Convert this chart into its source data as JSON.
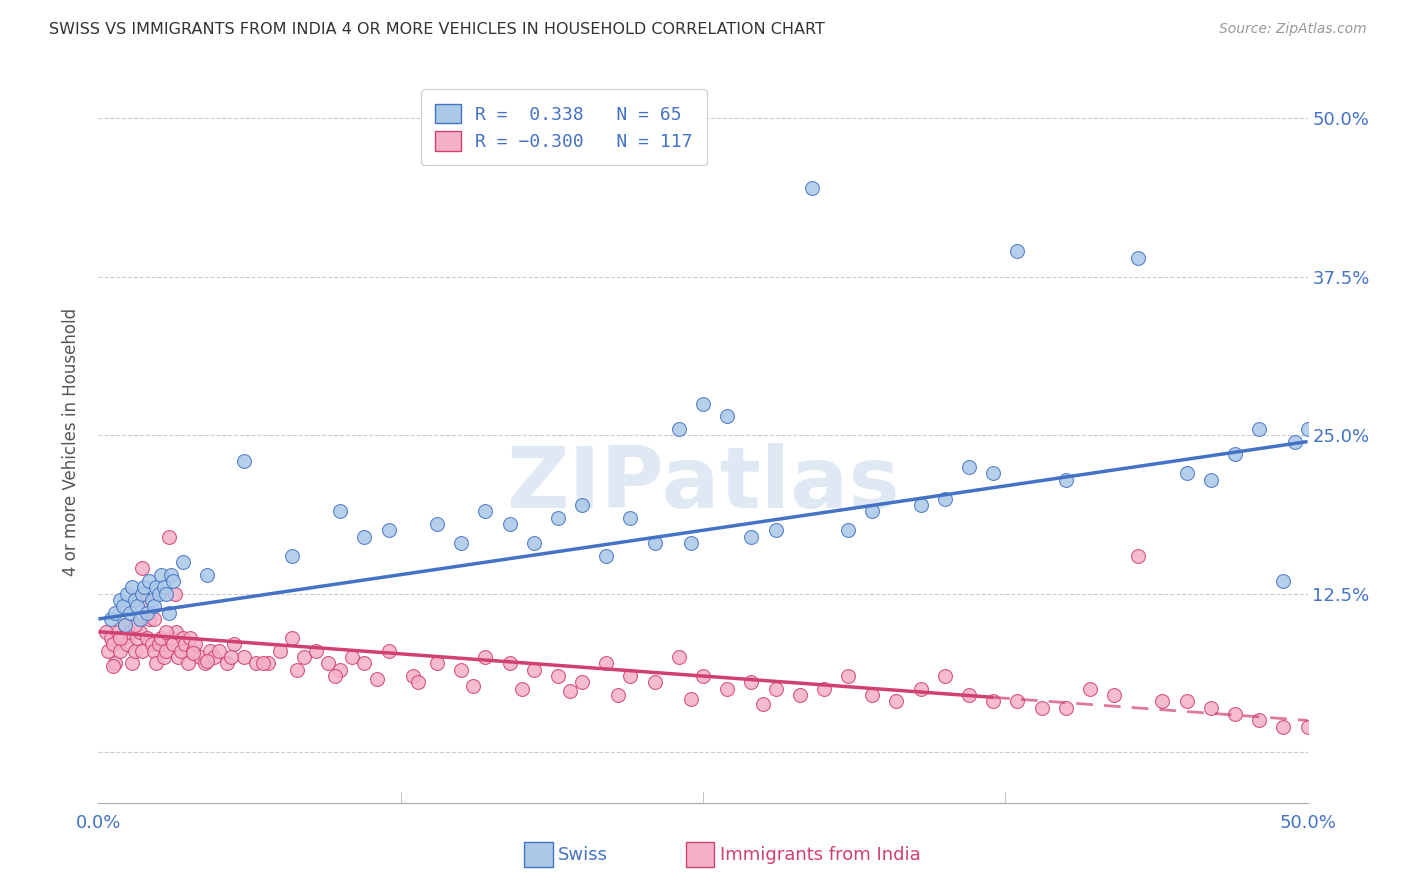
{
  "title": "SWISS VS IMMIGRANTS FROM INDIA 4 OR MORE VEHICLES IN HOUSEHOLD CORRELATION CHART",
  "source": "Source: ZipAtlas.com",
  "ylabel": "4 or more Vehicles in Household",
  "xlim": [
    0.0,
    50.0
  ],
  "ylim": [
    -4.0,
    53.0
  ],
  "yticks": [
    0.0,
    12.5,
    25.0,
    37.5,
    50.0
  ],
  "ytick_labels": [
    "",
    "12.5%",
    "25.0%",
    "37.5%",
    "50.0%"
  ],
  "xtick_labels": [
    "0.0%",
    "",
    "",
    "",
    "50.0%"
  ],
  "swiss_R": 0.338,
  "swiss_N": 65,
  "india_R": -0.3,
  "india_N": 117,
  "swiss_color": "#aac8e8",
  "swiss_edge_color": "#4472c4",
  "india_color": "#f4b0c8",
  "india_edge_color": "#d04070",
  "watermark_color": "#c8d8ea",
  "swiss_scatter_x": [
    0.5,
    0.7,
    0.9,
    1.0,
    1.1,
    1.2,
    1.3,
    1.4,
    1.5,
    1.6,
    1.7,
    1.8,
    1.9,
    2.0,
    2.1,
    2.2,
    2.3,
    2.4,
    2.5,
    2.6,
    2.7,
    2.8,
    2.9,
    3.0,
    3.1,
    3.5,
    4.5,
    6.0,
    8.0,
    10.0,
    11.0,
    12.0,
    14.0,
    16.0,
    18.0,
    19.0,
    20.0,
    22.0,
    24.0,
    24.5,
    25.0,
    26.0,
    27.0,
    28.0,
    29.5,
    31.0,
    32.0,
    34.0,
    35.0,
    36.0,
    37.0,
    38.0,
    40.0,
    43.0,
    45.0,
    46.0,
    47.0,
    48.0,
    49.0,
    49.5,
    50.0,
    23.0,
    15.0,
    17.0,
    21.0
  ],
  "swiss_scatter_y": [
    10.5,
    11.0,
    12.0,
    11.5,
    10.0,
    12.5,
    11.0,
    13.0,
    12.0,
    11.5,
    10.5,
    12.5,
    13.0,
    11.0,
    13.5,
    12.0,
    11.5,
    13.0,
    12.5,
    14.0,
    13.0,
    12.5,
    11.0,
    14.0,
    13.5,
    15.0,
    14.0,
    23.0,
    15.5,
    19.0,
    17.0,
    17.5,
    18.0,
    19.0,
    16.5,
    18.5,
    19.5,
    18.5,
    25.5,
    16.5,
    27.5,
    26.5,
    17.0,
    17.5,
    44.5,
    17.5,
    19.0,
    19.5,
    20.0,
    22.5,
    22.0,
    39.5,
    21.5,
    39.0,
    22.0,
    21.5,
    23.5,
    25.5,
    13.5,
    24.5,
    25.5,
    16.5,
    16.5,
    18.0,
    15.5
  ],
  "india_scatter_x": [
    0.3,
    0.4,
    0.5,
    0.6,
    0.7,
    0.8,
    0.9,
    1.0,
    1.1,
    1.2,
    1.3,
    1.4,
    1.5,
    1.6,
    1.7,
    1.8,
    1.9,
    2.0,
    2.1,
    2.2,
    2.3,
    2.4,
    2.5,
    2.6,
    2.7,
    2.8,
    2.9,
    3.0,
    3.1,
    3.2,
    3.3,
    3.4,
    3.5,
    3.6,
    3.7,
    3.8,
    3.9,
    4.0,
    4.2,
    4.4,
    4.6,
    4.8,
    5.0,
    5.3,
    5.6,
    6.0,
    6.5,
    7.0,
    7.5,
    8.0,
    8.5,
    9.0,
    9.5,
    10.0,
    10.5,
    11.0,
    12.0,
    13.0,
    14.0,
    15.0,
    16.0,
    17.0,
    18.0,
    19.0,
    20.0,
    21.0,
    22.0,
    23.0,
    24.0,
    25.0,
    26.0,
    27.0,
    28.0,
    29.0,
    30.0,
    31.0,
    32.0,
    33.0,
    34.0,
    35.0,
    36.0,
    37.0,
    38.0,
    39.0,
    40.0,
    41.0,
    42.0,
    43.0,
    44.0,
    45.0,
    46.0,
    47.0,
    48.0,
    49.0,
    50.0,
    3.15,
    2.8,
    2.3,
    1.8,
    1.5,
    0.9,
    0.6,
    3.9,
    4.5,
    5.5,
    6.8,
    8.2,
    9.8,
    11.5,
    13.2,
    15.5,
    17.5,
    19.5,
    21.5,
    24.5,
    27.5
  ],
  "india_scatter_y": [
    9.5,
    8.0,
    9.0,
    8.5,
    7.0,
    9.5,
    8.0,
    9.0,
    10.0,
    8.5,
    9.5,
    7.0,
    8.0,
    9.0,
    9.5,
    8.0,
    12.0,
    9.0,
    10.5,
    8.5,
    8.0,
    7.0,
    8.5,
    9.0,
    7.5,
    8.0,
    17.0,
    9.0,
    8.5,
    9.5,
    7.5,
    8.0,
    9.0,
    8.5,
    7.0,
    9.0,
    8.0,
    8.5,
    7.5,
    7.0,
    8.0,
    7.5,
    8.0,
    7.0,
    8.5,
    7.5,
    7.0,
    7.0,
    8.0,
    9.0,
    7.5,
    8.0,
    7.0,
    6.5,
    7.5,
    7.0,
    8.0,
    6.0,
    7.0,
    6.5,
    7.5,
    7.0,
    6.5,
    6.0,
    5.5,
    7.0,
    6.0,
    5.5,
    7.5,
    6.0,
    5.0,
    5.5,
    5.0,
    4.5,
    5.0,
    6.0,
    4.5,
    4.0,
    5.0,
    6.0,
    4.5,
    4.0,
    4.0,
    3.5,
    3.5,
    5.0,
    4.5,
    15.5,
    4.0,
    4.0,
    3.5,
    3.0,
    2.5,
    2.0,
    2.0,
    12.5,
    9.5,
    10.5,
    14.5,
    10.0,
    9.0,
    6.8,
    7.8,
    7.2,
    7.5,
    7.0,
    6.5,
    6.0,
    5.8,
    5.5,
    5.2,
    5.0,
    4.8,
    4.5,
    4.2,
    3.8
  ]
}
